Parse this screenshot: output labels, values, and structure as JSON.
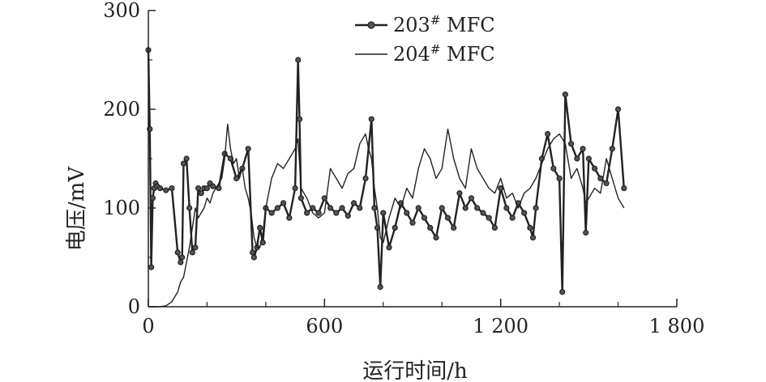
{
  "chart_data": {
    "type": "line",
    "title": "",
    "xlabel": "运行时间/h",
    "ylabel": "电压/mV",
    "xlim": [
      0,
      1800
    ],
    "ylim": [
      0,
      300
    ],
    "x_ticks": [
      0,
      600,
      1200,
      1800
    ],
    "x_tick_labels": [
      "0",
      "600",
      "1 200",
      "1 800"
    ],
    "y_ticks": [
      0,
      100,
      200,
      300
    ],
    "y_tick_labels": [
      "0",
      "100",
      "200",
      "300"
    ],
    "grid": false,
    "legend_position": "top-center",
    "series": [
      {
        "name": "203# MFC",
        "label_main": "203",
        "label_sup": "#",
        "label_suffix": " MFC",
        "color": "#222222",
        "marker": "circle",
        "x": [
          0,
          5,
          10,
          15,
          20,
          25,
          30,
          40,
          60,
          80,
          100,
          110,
          115,
          120,
          130,
          140,
          150,
          160,
          170,
          180,
          190,
          200,
          210,
          220,
          240,
          260,
          280,
          300,
          320,
          340,
          355,
          360,
          370,
          380,
          390,
          400,
          420,
          440,
          460,
          480,
          500,
          510,
          515,
          520,
          540,
          560,
          580,
          600,
          620,
          640,
          660,
          680,
          700,
          720,
          740,
          760,
          770,
          780,
          790,
          800,
          820,
          840,
          860,
          880,
          900,
          920,
          940,
          960,
          980,
          1000,
          1020,
          1040,
          1060,
          1080,
          1100,
          1120,
          1140,
          1160,
          1180,
          1200,
          1220,
          1240,
          1260,
          1280,
          1300,
          1310,
          1320,
          1340,
          1360,
          1380,
          1400,
          1410,
          1420,
          1440,
          1460,
          1480,
          1490,
          1500,
          1520,
          1540,
          1560,
          1580,
          1600,
          1620
        ],
        "y": [
          260,
          180,
          40,
          110,
          120,
          125,
          122,
          120,
          118,
          120,
          55,
          45,
          50,
          145,
          150,
          100,
          55,
          60,
          120,
          115,
          120,
          120,
          125,
          122,
          120,
          155,
          150,
          130,
          140,
          160,
          55,
          50,
          60,
          80,
          65,
          100,
          95,
          100,
          105,
          90,
          120,
          250,
          190,
          110,
          95,
          100,
          95,
          110,
          100,
          95,
          100,
          92,
          105,
          100,
          130,
          190,
          100,
          80,
          20,
          95,
          60,
          80,
          105,
          95,
          85,
          100,
          90,
          80,
          70,
          100,
          90,
          80,
          115,
          100,
          110,
          100,
          95,
          90,
          80,
          120,
          100,
          90,
          105,
          95,
          80,
          70,
          100,
          150,
          175,
          140,
          130,
          15,
          215,
          165,
          150,
          160,
          75,
          150,
          140,
          130,
          125,
          160,
          200,
          120
        ]
      },
      {
        "name": "204# MFC",
        "label_main": "204",
        "label_sup": "#",
        "label_suffix": " MFC",
        "color": "#222222",
        "marker": "none",
        "x": [
          0,
          40,
          60,
          80,
          100,
          110,
          120,
          130,
          140,
          150,
          160,
          170,
          180,
          190,
          200,
          210,
          220,
          240,
          250,
          260,
          270,
          280,
          290,
          300,
          310,
          320,
          330,
          340,
          350,
          360,
          370,
          380,
          390,
          400,
          420,
          440,
          460,
          480,
          500,
          510,
          520,
          540,
          560,
          580,
          600,
          620,
          640,
          660,
          680,
          700,
          720,
          740,
          750,
          760,
          770,
          780,
          790,
          800,
          820,
          840,
          860,
          880,
          900,
          920,
          940,
          960,
          980,
          1000,
          1020,
          1040,
          1060,
          1080,
          1100,
          1120,
          1140,
          1160,
          1180,
          1200,
          1220,
          1240,
          1260,
          1280,
          1300,
          1320,
          1340,
          1360,
          1380,
          1400,
          1420,
          1440,
          1460,
          1480,
          1490,
          1500,
          1520,
          1540,
          1560,
          1580,
          1600,
          1620
        ],
        "y": [
          0,
          0,
          1,
          5,
          15,
          25,
          30,
          45,
          60,
          80,
          100,
          90,
          95,
          100,
          110,
          105,
          115,
          125,
          130,
          150,
          185,
          160,
          145,
          150,
          130,
          140,
          120,
          110,
          95,
          70,
          60,
          60,
          75,
          100,
          130,
          145,
          140,
          150,
          160,
          170,
          120,
          110,
          95,
          90,
          95,
          140,
          130,
          120,
          135,
          140,
          165,
          175,
          160,
          150,
          120,
          100,
          70,
          65,
          90,
          110,
          100,
          120,
          110,
          140,
          160,
          150,
          130,
          140,
          180,
          150,
          130,
          120,
          160,
          140,
          130,
          120,
          115,
          130,
          110,
          115,
          100,
          115,
          120,
          130,
          145,
          160,
          170,
          175,
          165,
          130,
          140,
          120,
          105,
          110,
          120,
          115,
          150,
          130,
          110,
          100
        ]
      }
    ]
  }
}
